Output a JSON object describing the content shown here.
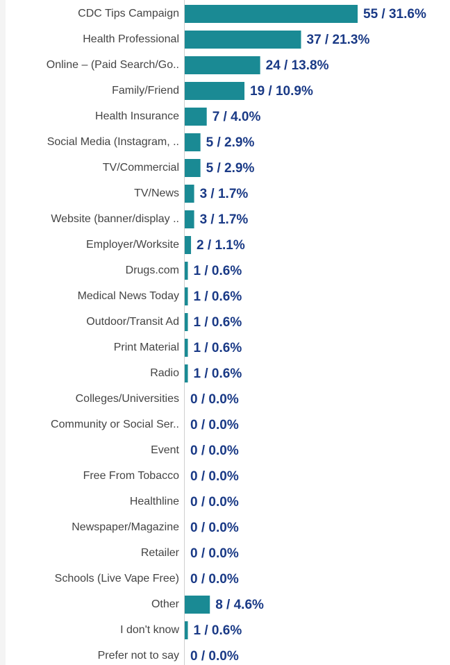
{
  "chart_data": {
    "type": "barh",
    "categories": [
      "CDC Tips Campaign",
      "Health Professional",
      "Online – (Paid Search/Go..",
      "Family/Friend",
      "Health Insurance",
      "Social Media (Instagram, ..",
      "TV/Commercial",
      "TV/News",
      "Website (banner/display ..",
      "Employer/Worksite",
      "Drugs.com",
      "Medical News Today",
      "Outdoor/Transit Ad",
      "Print Material",
      "Radio",
      "Colleges/Universities",
      "Community or Social Ser..",
      "Event",
      "Free From Tobacco",
      "Healthline",
      "Newspaper/Magazine",
      "Retailer",
      "Schools (Live Vape Free)",
      "Other",
      "I don't know",
      "Prefer not to say"
    ],
    "values": [
      55,
      37,
      24,
      19,
      7,
      5,
      5,
      3,
      3,
      2,
      1,
      1,
      1,
      1,
      1,
      0,
      0,
      0,
      0,
      0,
      0,
      0,
      0,
      8,
      1,
      0
    ],
    "value_labels": [
      "55 / 31.6%",
      "37 / 21.3%",
      "24 / 13.8%",
      "19 / 10.9%",
      "7 / 4.0%",
      "5 / 2.9%",
      "5 / 2.9%",
      "3 / 1.7%",
      "3 / 1.7%",
      "2 / 1.1%",
      "1 / 0.6%",
      "1 / 0.6%",
      "1 / 0.6%",
      "1 / 0.6%",
      "1 / 0.6%",
      "0 / 0.0%",
      "0 / 0.0%",
      "0 / 0.0%",
      "0 / 0.0%",
      "0 / 0.0%",
      "0 / 0.0%",
      "0 / 0.0%",
      "0 / 0.0%",
      "8 / 4.6%",
      "1 / 0.6%",
      "0 / 0.0%"
    ],
    "color": "#1a8a94"
  }
}
